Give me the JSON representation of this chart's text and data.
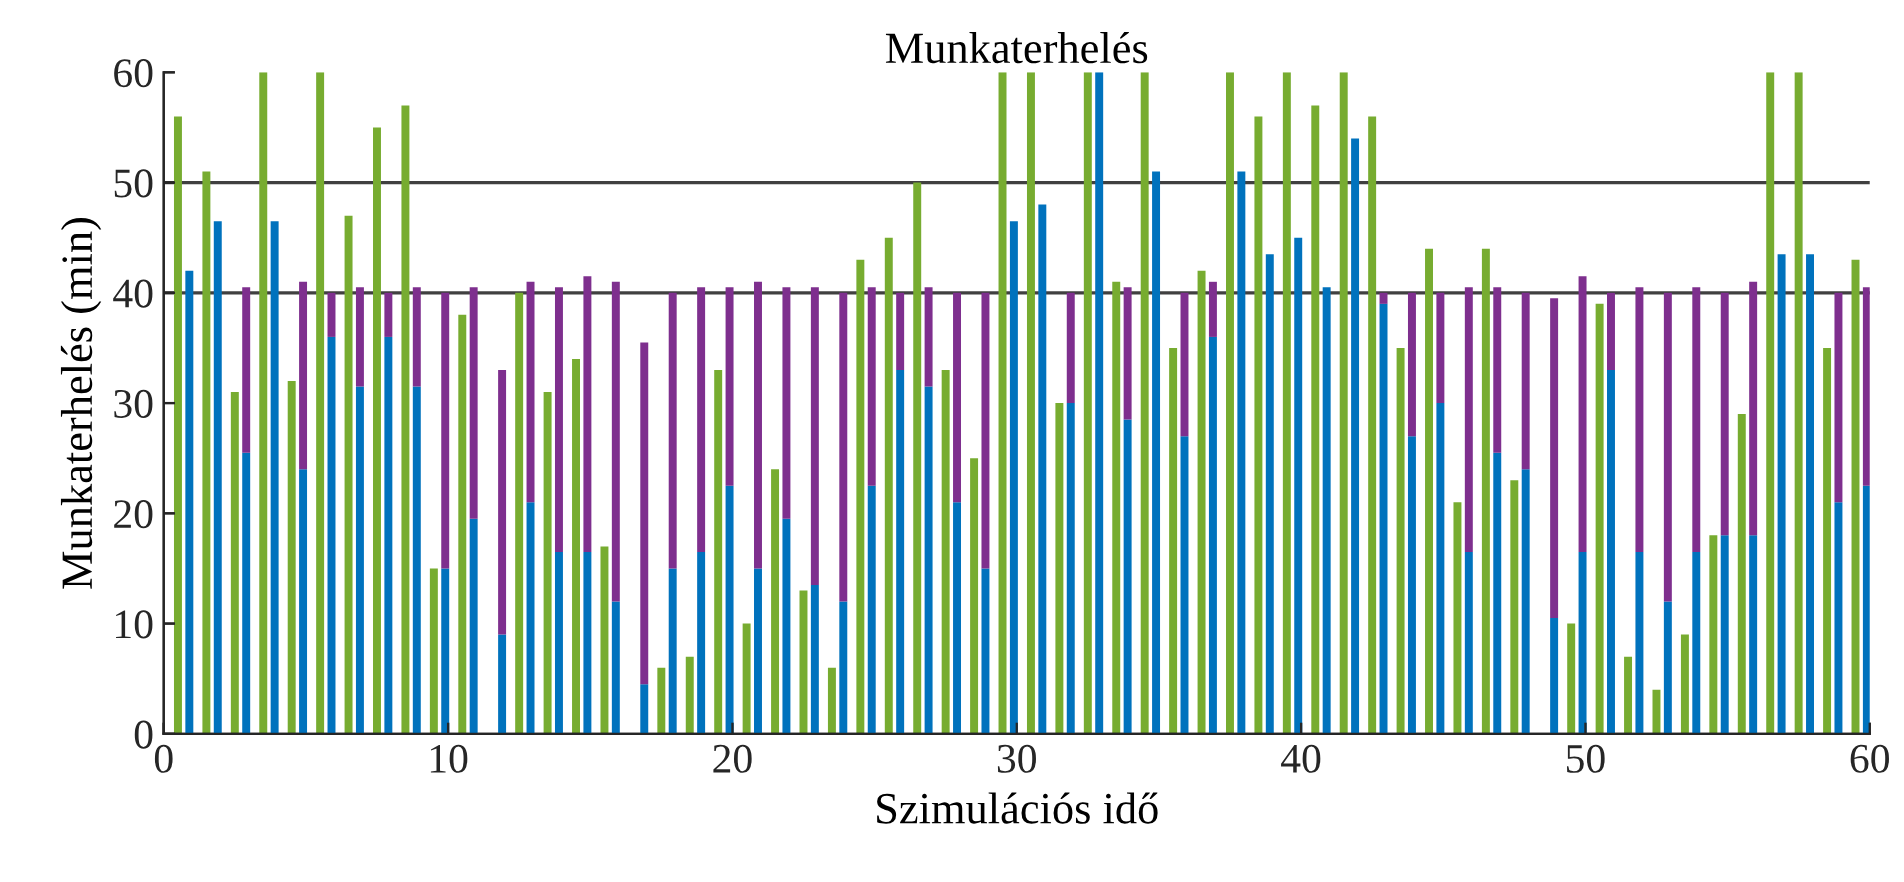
{
  "chart_data": [
    {
      "type": "bar",
      "title": "Munkaterhelés",
      "xlabel": "Szimulációs idő",
      "ylabel": "Munkaterhelés (min)",
      "grid": false,
      "legend": false,
      "xlim": [
        0,
        60
      ],
      "xticks": [
        0,
        10,
        20,
        30,
        40,
        50,
        60
      ],
      "ylim": [
        0,
        60
      ],
      "yticks": [
        0,
        10,
        20,
        30,
        40,
        50,
        60
      ],
      "ref_lines": [
        {
          "axis": "y",
          "value": 40,
          "color": "#404040"
        },
        {
          "axis": "y",
          "value": 50,
          "color": "#404040"
        }
      ],
      "series": [
        {
          "color": "#77ac30",
          "x": [
            0.5,
            1.5,
            2.5,
            3.5,
            4.5,
            5.5,
            6.5,
            7.5,
            8.5,
            9.5,
            10.5,
            11.5,
            12.5,
            13.5,
            14.5,
            15.5,
            16.5,
            17.5,
            18.5,
            19.5,
            20.5,
            21.5,
            22.5,
            23.5,
            24.5,
            25.5,
            26.5,
            27.5,
            28.5,
            29.5,
            30.5,
            31.5,
            32.5,
            33.5,
            34.5,
            35.5,
            36.5,
            37.5,
            38.5,
            39.5,
            40.5,
            41.5,
            42.5,
            43.5,
            44.5,
            45.5,
            46.5,
            47.5,
            48.5,
            49.5,
            50.5,
            51.5,
            52.5,
            53.5,
            54.5,
            55.5,
            56.5,
            57.5,
            58.5,
            59.5
          ],
          "values": [
            56,
            51,
            31,
            60,
            32,
            60,
            47,
            55,
            57,
            15,
            38,
            null,
            40,
            31,
            34,
            17,
            null,
            6,
            7,
            33,
            10,
            24,
            13,
            6,
            43,
            45,
            50,
            33,
            25,
            60,
            60,
            30,
            60,
            41,
            60,
            35,
            42,
            60,
            56,
            60,
            57,
            60,
            56,
            35,
            44,
            21,
            44,
            23,
            null,
            10,
            39,
            7,
            4,
            9,
            18,
            29,
            60,
            60,
            35,
            43
          ]
        }
      ]
    },
    {
      "type": "bar",
      "stacked": true,
      "tick_labels": false,
      "xlim": [
        0,
        60
      ],
      "xticks": [
        0,
        10,
        20,
        30,
        40,
        50,
        60
      ],
      "ylim": [
        0,
        60
      ],
      "yticks": [
        0,
        10,
        20,
        30,
        40,
        50,
        60
      ],
      "series": [
        {
          "color": "#0072bd",
          "x": [
            0.9,
            1.9,
            2.9,
            3.9,
            4.9,
            5.9,
            6.9,
            7.9,
            8.9,
            9.9,
            10.9,
            11.9,
            12.9,
            13.9,
            14.9,
            15.9,
            16.9,
            17.9,
            18.9,
            19.9,
            20.9,
            21.9,
            22.9,
            23.9,
            24.9,
            25.9,
            26.9,
            27.9,
            28.9,
            29.9,
            30.9,
            31.9,
            32.9,
            33.9,
            34.9,
            35.9,
            36.9,
            37.9,
            38.9,
            39.9,
            40.9,
            41.9,
            42.9,
            43.9,
            44.9,
            45.9,
            46.9,
            47.9,
            48.9,
            49.9,
            50.9,
            51.9,
            52.9,
            53.9,
            54.9,
            55.9,
            56.9,
            57.9,
            58.9,
            59.9
          ],
          "values": [
            42,
            46.5,
            25.5,
            46.5,
            24,
            36,
            31.5,
            36,
            31.5,
            15,
            19.5,
            9,
            21,
            16.5,
            16.5,
            12,
            4.5,
            15,
            16.5,
            22.5,
            15,
            19.5,
            13.5,
            12,
            22.5,
            33,
            31.5,
            21,
            15,
            46.5,
            48,
            30,
            60,
            28.5,
            51,
            27,
            36,
            51,
            43.5,
            45,
            40.5,
            54,
            39,
            27,
            30,
            16.5,
            25.5,
            24,
            10.5,
            16.5,
            33,
            16.5,
            12,
            16.5,
            18,
            18,
            43.5,
            43.5,
            21,
            22.5
          ]
        },
        {
          "color": "#7e2f8e",
          "x": [
            null,
            null,
            2.9,
            null,
            4.9,
            5.9,
            6.9,
            7.9,
            8.9,
            9.9,
            10.9,
            11.9,
            12.9,
            13.9,
            14.9,
            15.9,
            16.9,
            17.9,
            18.9,
            19.9,
            20.9,
            21.9,
            22.9,
            23.9,
            24.9,
            25.9,
            26.9,
            27.9,
            28.9,
            null,
            null,
            31.9,
            null,
            33.9,
            null,
            35.9,
            36.9,
            null,
            null,
            null,
            null,
            null,
            42.9,
            43.9,
            44.9,
            45.9,
            46.9,
            47.9,
            48.9,
            49.9,
            50.9,
            51.9,
            52.9,
            53.9,
            54.9,
            55.9,
            null,
            null,
            58.9,
            59.9
          ],
          "values": [
            null,
            null,
            15,
            null,
            17,
            4,
            9,
            4,
            9,
            25,
            21,
            24,
            20,
            24,
            25,
            29,
            31,
            25,
            24,
            18,
            26,
            21,
            27,
            28,
            18,
            7,
            9,
            19,
            25,
            null,
            null,
            10,
            null,
            12,
            null,
            13,
            5,
            null,
            null,
            null,
            null,
            null,
            1,
            13,
            10,
            24,
            15,
            16,
            29,
            25,
            7,
            24,
            28,
            24,
            22,
            23,
            null,
            null,
            19,
            18
          ]
        }
      ]
    }
  ]
}
